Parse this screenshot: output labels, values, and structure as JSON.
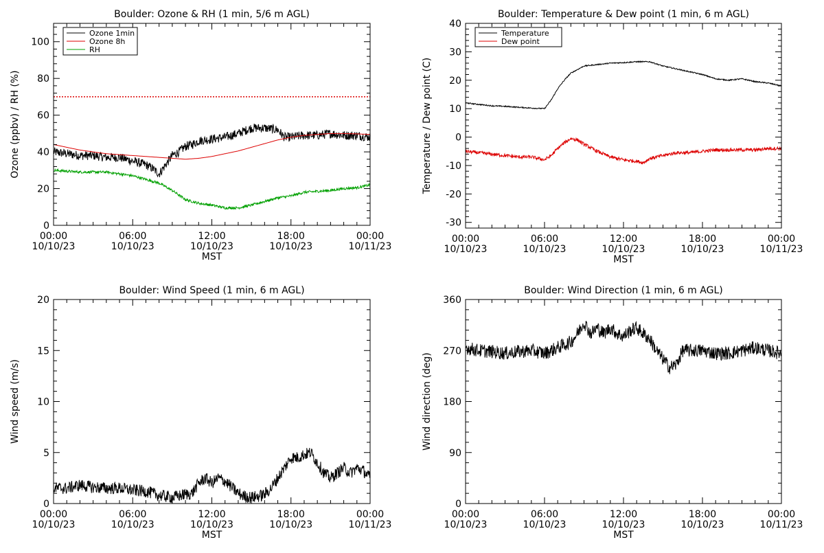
{
  "x_axis": {
    "tick_times": [
      "00:00",
      "06:00",
      "12:00",
      "18:00",
      "00:00"
    ],
    "tick_dates": [
      "10/10/23",
      "10/10/23",
      "10/10/23",
      "10/10/23",
      "10/11/23"
    ],
    "label": "MST"
  },
  "chart_data": [
    {
      "type": "line",
      "title": "Boulder: Ozone & RH (1 min, 5/6 m AGL)",
      "xlabel": "MST",
      "ylabel": "Ozone (ppbv) / RH (%)",
      "xlim": [
        0,
        24
      ],
      "ylim": [
        0,
        110
      ],
      "yticks": [
        0,
        20,
        40,
        60,
        80,
        100
      ],
      "legend": "top-left",
      "reference_line": {
        "y": 70,
        "color": "#dd0000",
        "style": "dotted"
      },
      "series": [
        {
          "name": "Ozone 1min",
          "color": "#000000",
          "noise": 2.5,
          "x": [
            0,
            1,
            2,
            3,
            4,
            5,
            6,
            7,
            7.5,
            8,
            8.5,
            9,
            9.5,
            10,
            10.5,
            11,
            12,
            13,
            14,
            15,
            16,
            17,
            17.5,
            18,
            19,
            20,
            21,
            22,
            23,
            24
          ],
          "y": [
            40,
            39,
            38,
            38,
            37,
            37,
            35,
            33,
            31,
            28,
            33,
            38,
            40,
            43,
            44,
            46,
            47,
            48,
            50,
            53,
            53,
            52,
            48,
            48,
            49,
            49,
            50,
            49,
            49,
            48
          ]
        },
        {
          "name": "Ozone 8h",
          "color": "#dd0000",
          "noise": 0,
          "x": [
            0,
            2,
            4,
            6,
            8,
            10,
            11,
            12,
            13,
            14,
            15,
            16,
            17,
            18,
            19,
            20,
            21,
            22,
            23,
            24
          ],
          "y": [
            44,
            41,
            39,
            38,
            37,
            36,
            36.5,
            37.5,
            39,
            40.5,
            42.5,
            44.5,
            46.5,
            48,
            49,
            49.5,
            50,
            50,
            49.8,
            49.5
          ]
        },
        {
          "name": "RH",
          "color": "#00a000",
          "noise": 0.7,
          "x": [
            0,
            2,
            4,
            6,
            7,
            8,
            9,
            10,
            11,
            12,
            13,
            14,
            15,
            16,
            17,
            18,
            19,
            20,
            21,
            22,
            23,
            24
          ],
          "y": [
            30,
            29,
            29,
            27,
            25,
            23,
            19,
            14,
            12,
            11,
            9.5,
            9.5,
            11,
            13,
            15,
            16,
            18,
            18.5,
            19,
            20,
            20.5,
            22
          ]
        }
      ]
    },
    {
      "type": "line",
      "title": "Boulder: Temperature & Dew point (1 min, 6 m AGL)",
      "xlabel": "MST",
      "ylabel": "Temperature / Dew point (C)",
      "xlim": [
        0,
        24
      ],
      "ylim": [
        -32,
        40
      ],
      "yticks": [
        -30,
        -20,
        -10,
        0,
        10,
        20,
        30,
        40
      ],
      "legend": "top-left",
      "series": [
        {
          "name": "Temperature",
          "color": "#000000",
          "noise": 0.2,
          "x": [
            0,
            1,
            2,
            3,
            4,
            5,
            6,
            6.5,
            7,
            7.5,
            8,
            9,
            10,
            11,
            12,
            13,
            14,
            15,
            16,
            17,
            18,
            19,
            20,
            21,
            22,
            23,
            24
          ],
          "y": [
            12,
            11.5,
            11,
            10.8,
            10.5,
            10.2,
            10,
            13,
            17,
            20,
            22.5,
            25,
            25.5,
            26,
            26.2,
            26.5,
            26.5,
            25,
            24,
            23,
            22,
            20.5,
            20,
            20.5,
            19.5,
            19,
            18
          ]
        },
        {
          "name": "Dew point",
          "color": "#dd0000",
          "noise": 0.6,
          "x": [
            0,
            1,
            2,
            3,
            4,
            5,
            6,
            6.5,
            7,
            7.5,
            8,
            8.5,
            9,
            10,
            11,
            12,
            13,
            13.5,
            14,
            15,
            16,
            17,
            18,
            19,
            20,
            21,
            22,
            23,
            24
          ],
          "y": [
            -5,
            -5.5,
            -6,
            -6.5,
            -7,
            -7,
            -8,
            -6.5,
            -4,
            -2,
            -0.5,
            -1,
            -2.5,
            -5,
            -7,
            -8,
            -8.5,
            -9,
            -7.5,
            -6.5,
            -5.5,
            -5.5,
            -5,
            -4.5,
            -4.5,
            -4.5,
            -4.5,
            -4,
            -4
          ]
        }
      ]
    },
    {
      "type": "line",
      "title": "Boulder: Wind Speed (1 min, 6 m AGL)",
      "xlabel": "MST",
      "ylabel": "Wind speed (m/s)",
      "xlim": [
        0,
        24
      ],
      "ylim": [
        0,
        20
      ],
      "yticks": [
        0,
        5,
        10,
        15,
        20
      ],
      "series": [
        {
          "color": "#000000",
          "noise": 0.6,
          "x": [
            0,
            1,
            2,
            3,
            4,
            5,
            6,
            7,
            8,
            9,
            10,
            10.5,
            11,
            11.5,
            12,
            12.5,
            13,
            14,
            14.5,
            15,
            15.5,
            16,
            16.5,
            17,
            17.5,
            18,
            18.5,
            19,
            19.5,
            20,
            20.5,
            21,
            21.5,
            22,
            22.5,
            23,
            23.5,
            24
          ],
          "y": [
            1.5,
            1.5,
            1.8,
            1.6,
            1.5,
            1.5,
            1.3,
            1.2,
            0.8,
            0.6,
            0.9,
            1.0,
            2.0,
            2.5,
            2.0,
            2.5,
            2.2,
            1.0,
            0.7,
            0.6,
            0.7,
            0.9,
            1.5,
            2.5,
            3.5,
            4.5,
            4.5,
            4.8,
            5.0,
            4.0,
            3.0,
            2.5,
            3.0,
            3.5,
            3.0,
            3.5,
            3.2,
            2.5
          ]
        }
      ]
    },
    {
      "type": "line",
      "title": "Boulder: Wind Direction (1 min, 6 m AGL)",
      "xlabel": "MST",
      "ylabel": "Wind direction (deg)",
      "xlim": [
        0,
        24
      ],
      "ylim": [
        0,
        360
      ],
      "yticks": [
        0,
        90,
        180,
        270,
        360
      ],
      "series": [
        {
          "color": "#000000",
          "noise": 12,
          "x": [
            0,
            1,
            2,
            3,
            4,
            5,
            6,
            7,
            8,
            8.5,
            9,
            9.5,
            10,
            10.5,
            11,
            11.5,
            12,
            12.5,
            13,
            13.5,
            14,
            14.5,
            15,
            15.5,
            16,
            16.5,
            17,
            18,
            19,
            20,
            21,
            22,
            23,
            24
          ],
          "y": [
            275,
            270,
            268,
            265,
            268,
            270,
            265,
            275,
            285,
            300,
            320,
            300,
            310,
            300,
            310,
            300,
            295,
            305,
            310,
            300,
            290,
            270,
            255,
            240,
            245,
            270,
            270,
            270,
            265,
            265,
            270,
            275,
            270,
            265
          ]
        }
      ]
    }
  ]
}
